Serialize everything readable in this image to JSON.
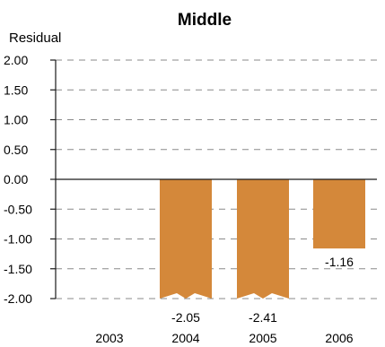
{
  "chart_data": {
    "type": "bar",
    "title": "Middle",
    "ylabel": "Residual",
    "xlabel": "",
    "categories": [
      "2003",
      "2004",
      "2005",
      "2006"
    ],
    "values": [
      null,
      -2.05,
      -2.41,
      -1.16
    ],
    "data_labels": [
      "",
      "-2.05",
      "-2.41",
      "-1.16"
    ],
    "ylim": [
      -2.0,
      2.0
    ],
    "yticks": [
      "2.00",
      "1.50",
      "1.00",
      "0.50",
      "0.00",
      "-0.50",
      "-1.00",
      "-1.50",
      "-2.00"
    ],
    "grid": true,
    "bar_color": "#d4883a",
    "truncated_below_axis": true
  }
}
